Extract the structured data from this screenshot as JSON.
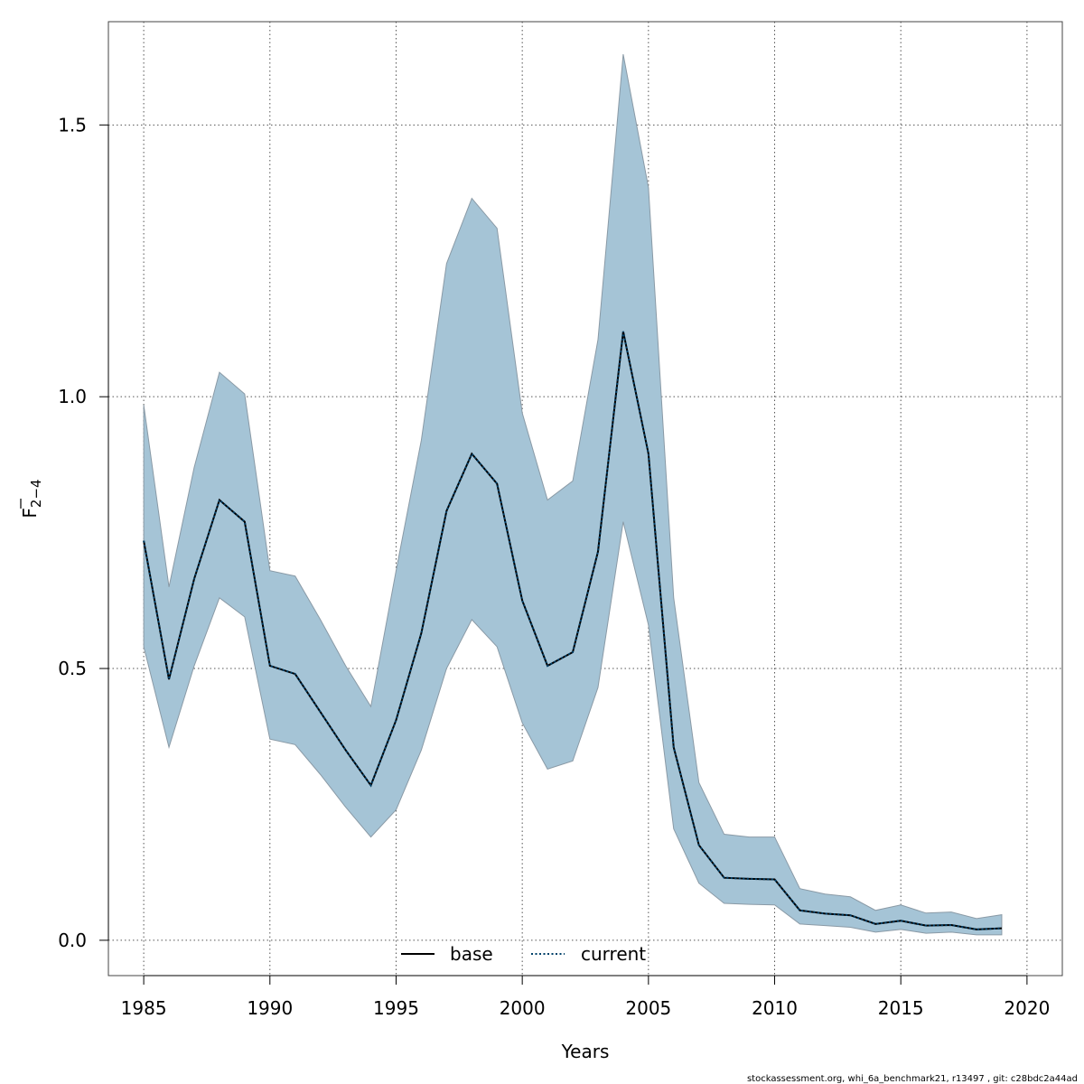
{
  "chart_data": {
    "type": "line",
    "title": "",
    "xlabel": "Years",
    "ylabel_main": "F",
    "ylabel_sub": "2−4",
    "xlim": [
      1983.6,
      2021.4
    ],
    "ylim": [
      -0.065,
      1.69
    ],
    "x_ticks": [
      1985,
      1990,
      1995,
      2000,
      2005,
      2010,
      2015,
      2020
    ],
    "x_tick_labels": [
      "1985",
      "1990",
      "1995",
      "2000",
      "2005",
      "2010",
      "2015",
      "2020"
    ],
    "y_ticks": [
      0.0,
      0.5,
      1.0,
      1.5
    ],
    "y_tick_labels": [
      "0.0",
      "0.5",
      "1.0",
      "1.5"
    ],
    "grid": true,
    "legend_position": "bottom-center",
    "colors": {
      "band_fill": "#a5c4d6",
      "band_edge": "#8a9aa6",
      "base": "#000000",
      "current": "#00416a",
      "grid": "#555555"
    },
    "x": [
      1985,
      1986,
      1987,
      1988,
      1989,
      1990,
      1991,
      1992,
      1993,
      1994,
      1995,
      1996,
      1997,
      1998,
      1999,
      2000,
      2001,
      2002,
      2003,
      2004,
      2005,
      2006,
      2007,
      2008,
      2009,
      2010,
      2011,
      2012,
      2013,
      2014,
      2015,
      2016,
      2017,
      2018,
      2019
    ],
    "band_upper": [
      0.985,
      0.65,
      0.87,
      1.045,
      1.005,
      0.68,
      0.67,
      0.59,
      0.505,
      0.43,
      0.68,
      0.92,
      1.245,
      1.365,
      1.31,
      0.97,
      0.81,
      0.845,
      1.105,
      1.63,
      1.385,
      0.63,
      0.29,
      0.195,
      0.19,
      0.19,
      0.095,
      0.085,
      0.08,
      0.055,
      0.065,
      0.05,
      0.052,
      0.04,
      0.047
    ],
    "band_lower": [
      0.54,
      0.355,
      0.505,
      0.63,
      0.595,
      0.37,
      0.36,
      0.305,
      0.245,
      0.19,
      0.24,
      0.35,
      0.5,
      0.59,
      0.54,
      0.4,
      0.315,
      0.33,
      0.465,
      0.77,
      0.58,
      0.205,
      0.105,
      0.068,
      0.066,
      0.065,
      0.03,
      0.027,
      0.024,
      0.015,
      0.02,
      0.013,
      0.015,
      0.01,
      0.01
    ],
    "series": [
      {
        "name": "base",
        "style": "solid",
        "values": [
          0.735,
          0.48,
          0.665,
          0.81,
          0.77,
          0.505,
          0.49,
          0.42,
          0.35,
          0.285,
          0.405,
          0.565,
          0.79,
          0.895,
          0.84,
          0.625,
          0.505,
          0.53,
          0.715,
          1.12,
          0.895,
          0.355,
          0.175,
          0.115,
          0.113,
          0.112,
          0.055,
          0.049,
          0.046,
          0.03,
          0.036,
          0.027,
          0.028,
          0.02,
          0.022
        ]
      },
      {
        "name": "current",
        "style": "dotted",
        "values": [
          0.735,
          0.48,
          0.665,
          0.81,
          0.77,
          0.505,
          0.49,
          0.42,
          0.35,
          0.285,
          0.405,
          0.565,
          0.79,
          0.895,
          0.84,
          0.625,
          0.505,
          0.53,
          0.715,
          1.12,
          0.895,
          0.355,
          0.175,
          0.115,
          0.113,
          0.112,
          0.055,
          0.049,
          0.046,
          0.03,
          0.036,
          0.027,
          0.028,
          0.02,
          0.022
        ]
      }
    ],
    "footer": "stockassessment.org, whi_6a_benchmark21, r13497 , git: c28bdc2a44ad"
  }
}
